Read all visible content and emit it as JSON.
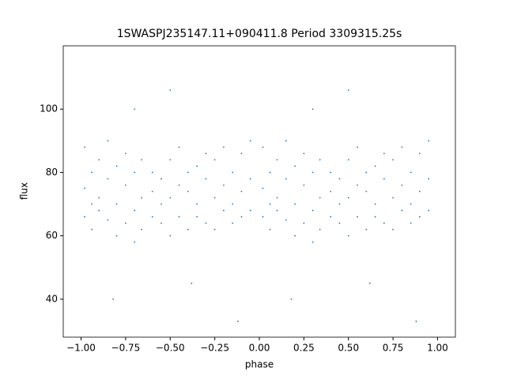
{
  "chart_data": {
    "type": "scatter",
    "title": "1SWASPJ235147.11+090411.8 Period 3309315.25s",
    "x_label": "phase",
    "y_label": "flux",
    "color": "#1f77b4",
    "xlim": [
      -1.1,
      1.1
    ],
    "ylim": [
      28,
      120
    ],
    "xticks": [
      {
        "value": -1,
        "label": "−1.00"
      },
      {
        "value": -0.75,
        "label": "−0.75"
      },
      {
        "value": -0.5,
        "label": "−0.50"
      },
      {
        "value": -0.25,
        "label": "−0.25"
      },
      {
        "value": 0,
        "label": "0.00"
      },
      {
        "value": 0.25,
        "label": "0.25"
      },
      {
        "value": 0.5,
        "label": "0.50"
      },
      {
        "value": 0.75,
        "label": "0.75"
      },
      {
        "value": 1,
        "label": "1.00"
      }
    ],
    "yticks": [
      40,
      60,
      80,
      100
    ],
    "x": [
      -0.98,
      -0.98,
      -0.98,
      -0.94,
      -0.94,
      -0.94,
      -0.9,
      -0.9,
      -0.9,
      -0.85,
      -0.85,
      -0.85,
      -0.8,
      -0.8,
      -0.8,
      -0.75,
      -0.75,
      -0.75,
      -0.7,
      -0.7,
      -0.7,
      -0.7,
      -0.66,
      -0.66,
      -0.66,
      -0.6,
      -0.6,
      -0.6,
      -0.55,
      -0.55,
      -0.55,
      -0.5,
      -0.5,
      -0.5,
      -0.45,
      -0.45,
      -0.45,
      -0.4,
      -0.4,
      -0.4,
      -0.35,
      -0.35,
      -0.35,
      -0.3,
      -0.3,
      -0.3,
      -0.25,
      -0.25,
      -0.25,
      -0.2,
      -0.2,
      -0.2,
      -0.15,
      -0.15,
      -0.15,
      -0.1,
      -0.1,
      -0.1,
      -0.05,
      -0.05,
      -0.05,
      -0.82,
      -0.5,
      -0.38,
      -0.12,
      0.02,
      0.02,
      0.02,
      0.06,
      0.06,
      0.06,
      0.1,
      0.1,
      0.1,
      0.15,
      0.15,
      0.15,
      0.2,
      0.2,
      0.2,
      0.25,
      0.25,
      0.25,
      0.3,
      0.3,
      0.3,
      0.3,
      0.34,
      0.34,
      0.34,
      0.4,
      0.4,
      0.4,
      0.45,
      0.45,
      0.45,
      0.5,
      0.5,
      0.5,
      0.55,
      0.55,
      0.55,
      0.6,
      0.6,
      0.6,
      0.65,
      0.65,
      0.65,
      0.7,
      0.7,
      0.7,
      0.75,
      0.75,
      0.75,
      0.8,
      0.8,
      0.8,
      0.85,
      0.85,
      0.85,
      0.9,
      0.9,
      0.9,
      0.95,
      0.95,
      0.95,
      0.18,
      0.5,
      0.62,
      0.88
    ],
    "values": [
      75,
      88,
      66,
      80,
      70,
      62,
      72,
      84,
      68,
      78,
      65,
      90,
      70,
      82,
      60,
      76,
      64,
      86,
      68,
      80,
      58,
      100,
      72,
      62,
      84,
      74,
      66,
      80,
      64,
      70,
      78,
      60,
      72,
      84,
      66,
      76,
      88,
      62,
      74,
      80,
      70,
      82,
      66,
      64,
      78,
      86,
      72,
      84,
      62,
      76,
      68,
      88,
      80,
      70,
      64,
      74,
      86,
      66,
      78,
      90,
      68,
      40,
      106,
      45,
      33,
      75,
      88,
      66,
      80,
      70,
      62,
      72,
      84,
      68,
      78,
      65,
      90,
      70,
      82,
      60,
      76,
      64,
      86,
      68,
      80,
      58,
      100,
      72,
      62,
      84,
      74,
      66,
      80,
      64,
      70,
      78,
      60,
      72,
      84,
      66,
      76,
      88,
      62,
      74,
      80,
      70,
      82,
      66,
      64,
      78,
      86,
      72,
      84,
      62,
      76,
      68,
      88,
      80,
      70,
      64,
      74,
      86,
      66,
      78,
      90,
      68,
      40,
      106,
      45,
      33
    ]
  }
}
